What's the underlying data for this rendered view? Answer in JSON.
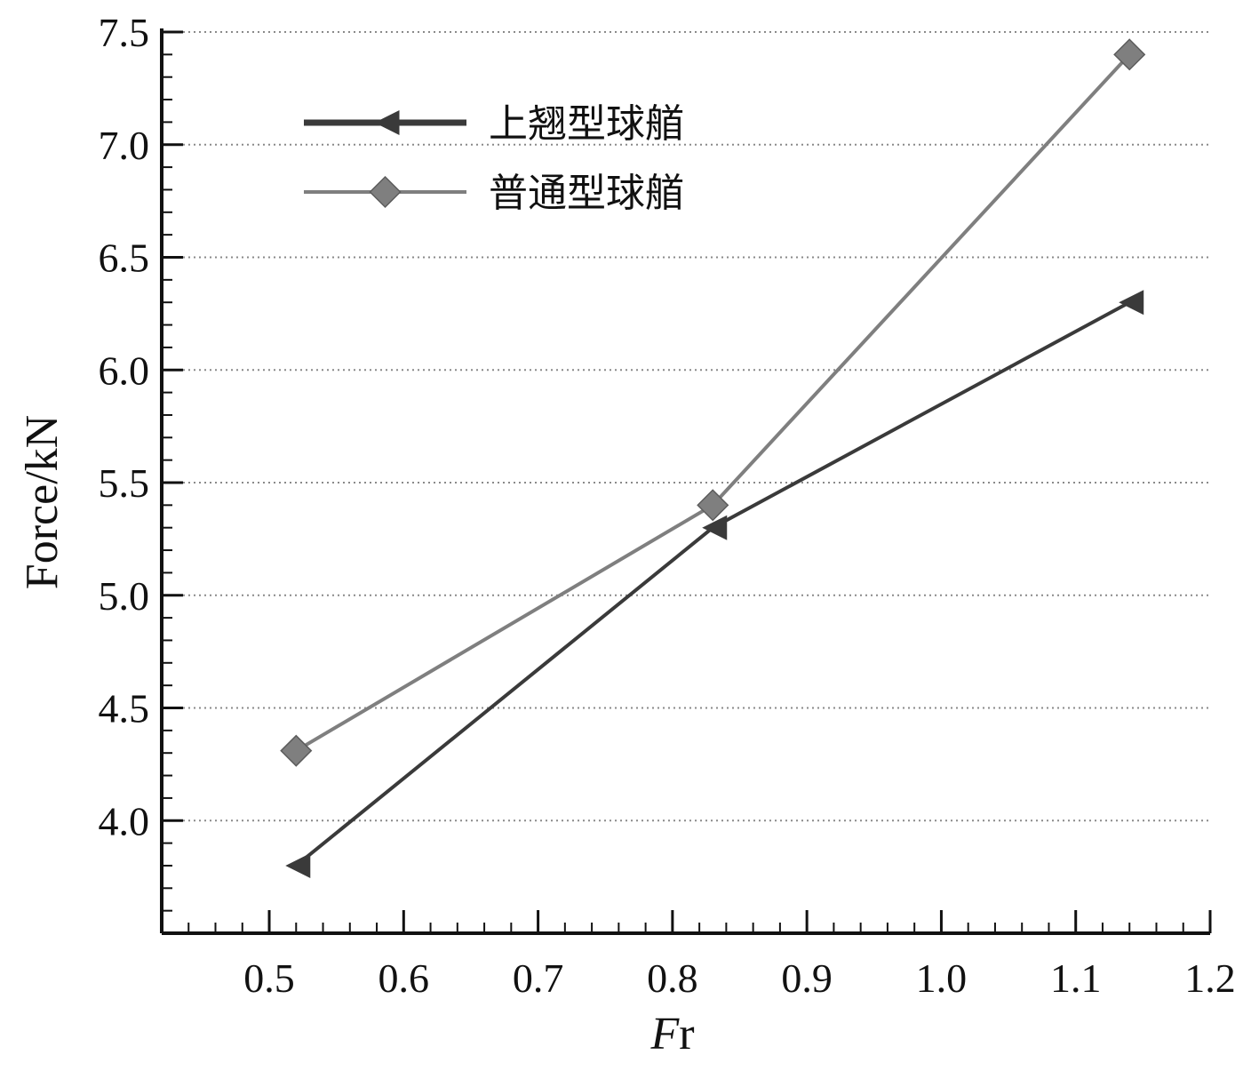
{
  "chart_data": {
    "type": "line",
    "xlabel_prefix": "F",
    "xlabel_suffix": "r",
    "ylabel": "Force/kN",
    "xlim": [
      0.42,
      1.2
    ],
    "ylim": [
      3.5,
      7.5
    ],
    "x_ticks": [
      0.5,
      0.6,
      0.7,
      0.8,
      0.9,
      1.0,
      1.1,
      1.2
    ],
    "x_tick_labels": [
      "0.5",
      "0.6",
      "0.7",
      "0.8",
      "0.9",
      "1.0",
      "1.1",
      "1.2"
    ],
    "y_ticks": [
      4.0,
      4.5,
      5.0,
      5.5,
      6.0,
      6.5,
      7.0,
      7.5
    ],
    "y_tick_labels": [
      "4.0",
      "4.5",
      "5.0",
      "5.5",
      "6.0",
      "6.5",
      "7.0",
      "7.5"
    ],
    "grid": "horizontal-dotted",
    "legend_position": "top-left",
    "series": [
      {
        "name": "上翘型球艏",
        "marker": "left-triangle",
        "color": "#3a3a3a",
        "x": [
          0.52,
          0.83,
          1.14
        ],
        "y": [
          3.8,
          5.3,
          6.3
        ]
      },
      {
        "name": "普通型球艏",
        "marker": "diamond",
        "color": "#7f7f7f",
        "x": [
          0.52,
          0.83,
          1.14
        ],
        "y": [
          4.31,
          5.4,
          7.4
        ]
      }
    ]
  }
}
